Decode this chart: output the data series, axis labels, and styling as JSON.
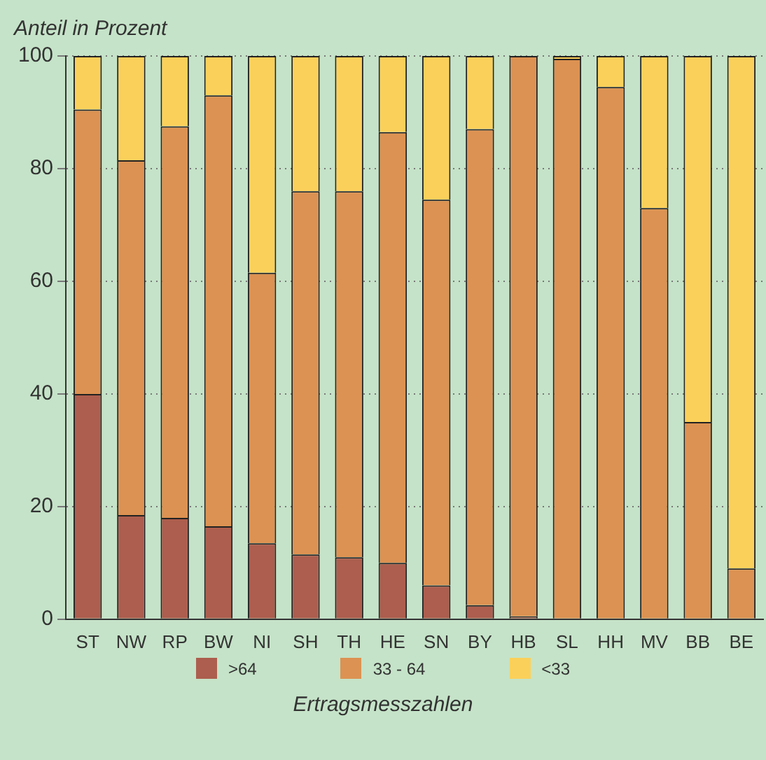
{
  "chart_data": {
    "type": "bar",
    "stacked": true,
    "ylabel": "Anteil in Prozent",
    "xlabel": "Ertragsmesszahlen",
    "categories": [
      "ST",
      "NW",
      "RP",
      "BW",
      "NI",
      "SH",
      "TH",
      "HE",
      "SN",
      "BY",
      "HB",
      "SL",
      "HH",
      "MV",
      "BB",
      "BE"
    ],
    "series": [
      {
        "name": ">64",
        "color": "#ad5e4e",
        "values": [
          40,
          18.5,
          18,
          16.5,
          13.5,
          11.5,
          11,
          10,
          6,
          2.5,
          0.5,
          0,
          0,
          0,
          0,
          0
        ]
      },
      {
        "name": "33 - 64",
        "color": "#dc9252",
        "values": [
          50.5,
          63,
          69.5,
          76.5,
          48,
          64.5,
          65,
          76.5,
          68.5,
          84.5,
          99.5,
          99.5,
          94.5,
          73,
          35,
          9
        ]
      },
      {
        "name": "<33",
        "color": "#fbd05a",
        "values": [
          9.5,
          18.5,
          12.5,
          7,
          38.5,
          24,
          24,
          13.5,
          25.5,
          13,
          0,
          0.5,
          5.5,
          27,
          65,
          91
        ]
      }
    ],
    "ylim": [
      0,
      100
    ],
    "yticks": [
      0,
      20,
      40,
      60,
      80,
      100
    ],
    "grid": "y",
    "legend": "bottom"
  }
}
